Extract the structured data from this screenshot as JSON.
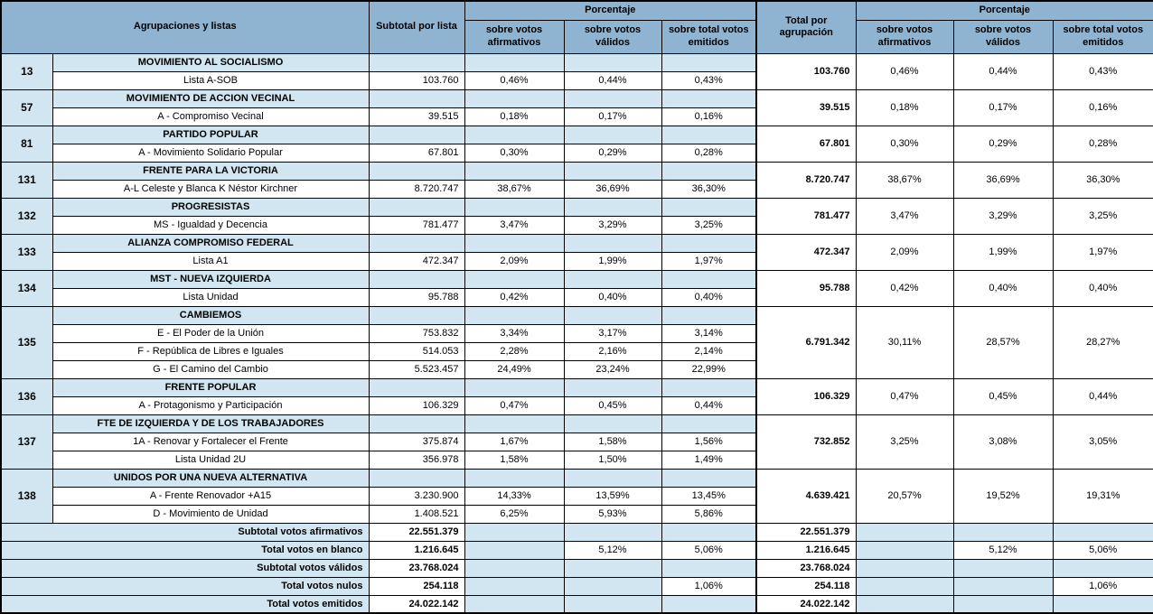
{
  "colors": {
    "header_bg": "#8fb4d1",
    "band_bg": "#d1e6f0",
    "border": "#000000"
  },
  "header": {
    "agrupaciones": "Agrupaciones y listas",
    "subtotal": "Subtotal por lista",
    "porcentaje": "Porcentaje",
    "sobre_afirmativos": "sobre votos afirmativos",
    "sobre_validos": "sobre votos válidos",
    "sobre_emitidos": "sobre total votos emitidos",
    "total": "Total por agrupación"
  },
  "groups": [
    {
      "id": "13",
      "name": "MOVIMIENTO AL SOCIALISMO",
      "lists": [
        {
          "name": "Lista A-SOB",
          "subtotal": "103.760",
          "pct": [
            "0,46%",
            "0,44%",
            "0,43%"
          ]
        }
      ],
      "total": "103.760",
      "total_pct": [
        "0,46%",
        "0,44%",
        "0,43%"
      ]
    },
    {
      "id": "57",
      "name": "MOVIMIENTO DE ACCION VECINAL",
      "lists": [
        {
          "name": "A - Compromiso Vecinal",
          "subtotal": "39.515",
          "pct": [
            "0,18%",
            "0,17%",
            "0,16%"
          ]
        }
      ],
      "total": "39.515",
      "total_pct": [
        "0,18%",
        "0,17%",
        "0,16%"
      ]
    },
    {
      "id": "81",
      "name": "PARTIDO POPULAR",
      "lists": [
        {
          "name": "A - Movimiento Solidario Popular",
          "subtotal": "67.801",
          "pct": [
            "0,30%",
            "0,29%",
            "0,28%"
          ]
        }
      ],
      "total": "67.801",
      "total_pct": [
        "0,30%",
        "0,29%",
        "0,28%"
      ]
    },
    {
      "id": "131",
      "name": "FRENTE PARA LA VICTORIA",
      "lists": [
        {
          "name": "A-L  Celeste y Blanca K Néstor Kirchner",
          "subtotal": "8.720.747",
          "pct": [
            "38,67%",
            "36,69%",
            "36,30%"
          ]
        }
      ],
      "total": "8.720.747",
      "total_pct": [
        "38,67%",
        "36,69%",
        "36,30%"
      ]
    },
    {
      "id": "132",
      "name": "PROGRESISTAS",
      "lists": [
        {
          "name": "MS - Igualdad y Decencia",
          "subtotal": "781.477",
          "pct": [
            "3,47%",
            "3,29%",
            "3,25%"
          ]
        }
      ],
      "total": "781.477",
      "total_pct": [
        "3,47%",
        "3,29%",
        "3,25%"
      ]
    },
    {
      "id": "133",
      "name": "ALIANZA COMPROMISO FEDERAL",
      "lists": [
        {
          "name": "Lista A1",
          "subtotal": "472.347",
          "pct": [
            "2,09%",
            "1,99%",
            "1,97%"
          ]
        }
      ],
      "total": "472.347",
      "total_pct": [
        "2,09%",
        "1,99%",
        "1,97%"
      ]
    },
    {
      "id": "134",
      "name": "MST - NUEVA IZQUIERDA",
      "lists": [
        {
          "name": "Lista Unidad",
          "subtotal": "95.788",
          "pct": [
            "0,42%",
            "0,40%",
            "0,40%"
          ]
        }
      ],
      "total": "95.788",
      "total_pct": [
        "0,42%",
        "0,40%",
        "0,40%"
      ]
    },
    {
      "id": "135",
      "name": "CAMBIEMOS",
      "lists": [
        {
          "name": "E - El Poder de la Unión",
          "subtotal": "753.832",
          "pct": [
            "3,34%",
            "3,17%",
            "3,14%"
          ]
        },
        {
          "name": "F - República de Libres e Iguales",
          "subtotal": "514.053",
          "pct": [
            "2,28%",
            "2,16%",
            "2,14%"
          ]
        },
        {
          "name": "G - El Camino del Cambio",
          "subtotal": "5.523.457",
          "pct": [
            "24,49%",
            "23,24%",
            "22,99%"
          ]
        }
      ],
      "total": "6.791.342",
      "total_pct": [
        "30,11%",
        "28,57%",
        "28,27%"
      ]
    },
    {
      "id": "136",
      "name": "FRENTE POPULAR",
      "lists": [
        {
          "name": "A - Protagonismo y Participación",
          "subtotal": "106.329",
          "pct": [
            "0,47%",
            "0,45%",
            "0,44%"
          ]
        }
      ],
      "total": "106.329",
      "total_pct": [
        "0,47%",
        "0,45%",
        "0,44%"
      ]
    },
    {
      "id": "137",
      "name": "FTE DE IZQUIERDA Y DE LOS TRABAJADORES",
      "lists": [
        {
          "name": "1A - Renovar y Fortalecer el Frente",
          "subtotal": "375.874",
          "pct": [
            "1,67%",
            "1,58%",
            "1,56%"
          ]
        },
        {
          "name": "Lista  Unidad 2U",
          "subtotal": "356.978",
          "pct": [
            "1,58%",
            "1,50%",
            "1,49%"
          ]
        }
      ],
      "total": "732.852",
      "total_pct": [
        "3,25%",
        "3,08%",
        "3,05%"
      ]
    },
    {
      "id": "138",
      "name": "UNIDOS POR UNA NUEVA ALTERNATIVA",
      "lists": [
        {
          "name": "A - Frente Renovador  +A15",
          "subtotal": "3.230.900",
          "pct": [
            "14,33%",
            "13,59%",
            "13,45%"
          ]
        },
        {
          "name": "D - Movimiento de Unidad",
          "subtotal": "1.408.521",
          "pct": [
            "6,25%",
            "5,93%",
            "5,86%"
          ]
        }
      ],
      "total": "4.639.421",
      "total_pct": [
        "20,57%",
        "19,52%",
        "19,31%"
      ]
    }
  ],
  "footer": [
    {
      "label": "Subtotal votos afirmativos",
      "value": "22.551.379",
      "pct": [
        "",
        "",
        ""
      ],
      "total": "22.551.379",
      "total_pct": [
        "",
        "",
        ""
      ]
    },
    {
      "label": "Total votos en blanco",
      "value": "1.216.645",
      "pct": [
        "",
        "5,12%",
        "5,06%"
      ],
      "total": "1.216.645",
      "total_pct": [
        "",
        "5,12%",
        "5,06%"
      ]
    },
    {
      "label": "Subtotal votos válidos",
      "value": "23.768.024",
      "pct": [
        "",
        "",
        ""
      ],
      "total": "23.768.024",
      "total_pct": [
        "",
        "",
        ""
      ]
    },
    {
      "label": "Total votos nulos",
      "value": "254.118",
      "pct": [
        "",
        "",
        "1,06%"
      ],
      "total": "254.118",
      "total_pct": [
        "",
        "",
        "1,06%"
      ]
    },
    {
      "label": "Total votos emitidos",
      "value": "24.022.142",
      "pct": [
        "",
        "",
        ""
      ],
      "total": "24.022.142",
      "total_pct": [
        "",
        "",
        ""
      ]
    }
  ]
}
